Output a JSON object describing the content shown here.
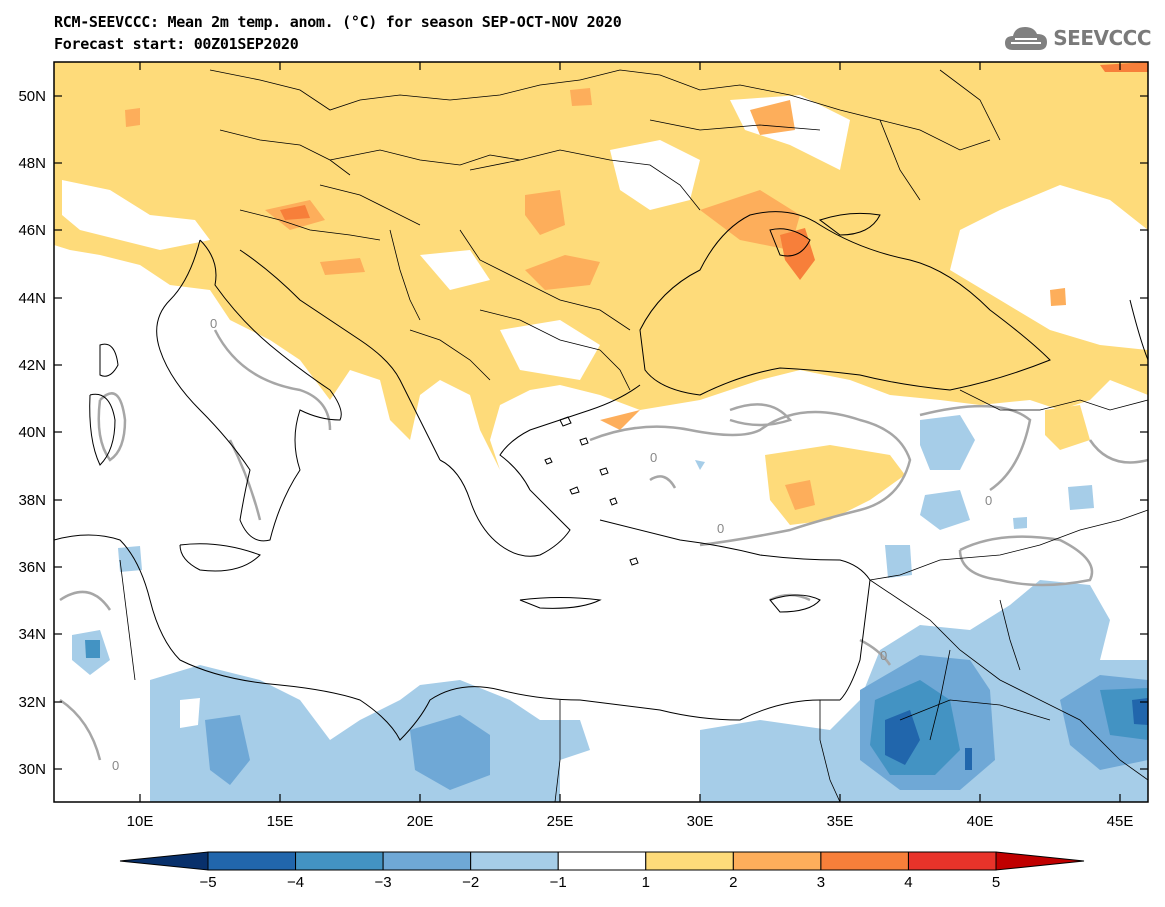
{
  "title_line1": "RCM-SEEVCCC: Mean 2m temp. anom. (°C) for season SEP-OCT-NOV 2020",
  "title_line2": "Forecast start: 00Z01SEP2020",
  "logo_text": "SEEVCCC",
  "lat_labels": [
    "50N",
    "48N",
    "46N",
    "44N",
    "42N",
    "40N",
    "38N",
    "36N",
    "34N",
    "32N",
    "30N"
  ],
  "lon_labels": [
    "10E",
    "15E",
    "20E",
    "25E",
    "30E",
    "35E",
    "40E",
    "45E"
  ],
  "contour_label": "0",
  "colorbar": {
    "ticks": [
      "-5",
      "-4",
      "-3",
      "-2",
      "-1",
      "1",
      "2",
      "3",
      "4",
      "5"
    ],
    "colors": [
      "#08306b",
      "#2166ac",
      "#4393c3",
      "#6fa8d6",
      "#a6cde8",
      "#ffffff",
      "#fedb7a",
      "#fdae5b",
      "#f77f3a",
      "#e8332a",
      "#c00000"
    ]
  }
}
